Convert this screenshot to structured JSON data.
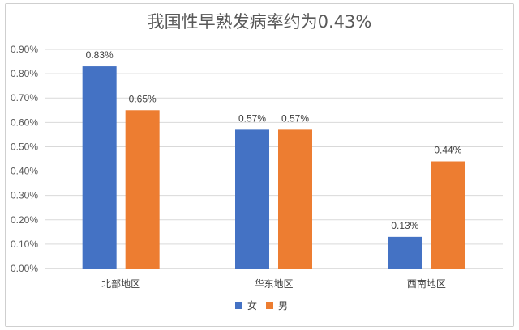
{
  "chart_data": {
    "type": "bar",
    "title": "我国性早熟发病率约为0.43%",
    "categories": [
      "北部地区",
      "华东地区",
      "西南地区"
    ],
    "series": [
      {
        "name": "女",
        "color": "#4472C4",
        "values": [
          0.83,
          0.57,
          0.13
        ],
        "labels": [
          "0.83%",
          "0.57%",
          "0.13%"
        ]
      },
      {
        "name": "男",
        "color": "#ED7D31",
        "values": [
          0.65,
          0.57,
          0.44
        ],
        "labels": [
          "0.65%",
          "0.57%",
          "0.44%"
        ]
      }
    ],
    "ylim": [
      0,
      0.9
    ],
    "yticks": [
      0.0,
      0.1,
      0.2,
      0.3,
      0.4,
      0.5,
      0.6,
      0.7,
      0.8,
      0.9
    ],
    "ytick_labels": [
      "0.00%",
      "0.10%",
      "0.20%",
      "0.30%",
      "0.40%",
      "0.50%",
      "0.60%",
      "0.70%",
      "0.80%",
      "0.90%"
    ],
    "grid": true,
    "legend": "bottom"
  }
}
